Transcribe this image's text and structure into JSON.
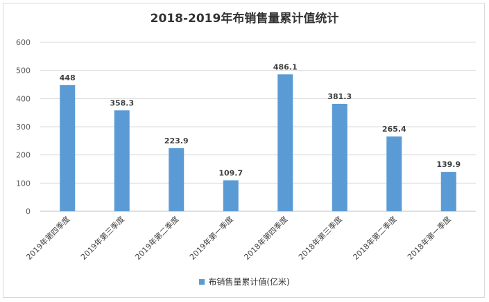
{
  "chart_data": {
    "type": "bar",
    "title": "2018-2019年布销售量累计值统计",
    "categories": [
      "2019年第四季度",
      "2019年第三季度",
      "2019年第二季度",
      "2019年第一季度",
      "2018年第四季度",
      "2018年第三季度",
      "2018年第二季度",
      "2018年第一季度"
    ],
    "series": [
      {
        "name": "布销售量累计值(亿米)",
        "values": [
          448,
          358.3,
          223.9,
          109.7,
          486.1,
          381.3,
          265.4,
          139.9
        ]
      }
    ],
    "data_labels": [
      "448",
      "358.3",
      "223.9",
      "109.7",
      "486.1",
      "381.3",
      "265.4",
      "139.9"
    ],
    "y_ticks": [
      "0",
      "100",
      "200",
      "300",
      "400",
      "500",
      "600"
    ],
    "ylim": [
      0,
      600
    ],
    "grid": true,
    "legend_position": "bottom",
    "bar_color": "#5b9bd5"
  }
}
